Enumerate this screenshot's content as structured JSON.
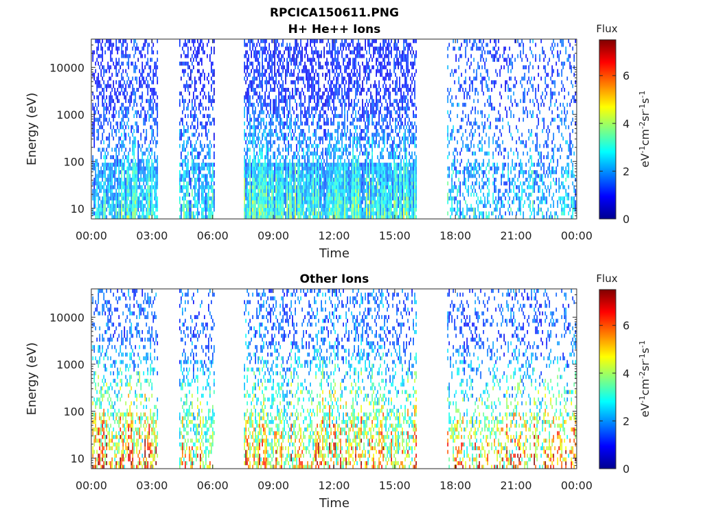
{
  "figure_title": "RPCICA150611.PNG",
  "colorbar": {
    "label": "Flux",
    "ticks": [
      "0",
      "2",
      "4",
      "6"
    ],
    "range": [
      0,
      7.5
    ],
    "colormap": "jet",
    "unit": {
      "p1": "eV",
      "s1": "-1",
      "p2": "cm",
      "s2": "-2",
      "p3": "sr",
      "s3": "-1",
      "p4": "s",
      "s4": "-1"
    }
  },
  "chart_data": [
    {
      "type": "heatmap",
      "title": "H+ He++ Ions",
      "xlabel": "Time",
      "ylabel": "Energy (eV)",
      "yscale": "log",
      "ylim": [
        6,
        40000
      ],
      "xlim_hours": [
        0,
        24
      ],
      "x_ticks": [
        "00:00",
        "03:00",
        "06:00",
        "09:00",
        "12:00",
        "15:00",
        "18:00",
        "21:00",
        "00:00"
      ],
      "y_ticks": [
        "10",
        "100",
        "1000",
        "10000"
      ],
      "data_intervals_hours": [
        [
          0.05,
          3.25
        ],
        [
          4.35,
          6.05
        ],
        [
          7.55,
          16.1
        ],
        [
          17.6,
          23.95
        ]
      ],
      "segments": [
        {
          "start": 0.05,
          "end": 3.25,
          "low_flux": 2.8,
          "high_flux": 1.2,
          "density": 0.55
        },
        {
          "start": 4.35,
          "end": 6.05,
          "low_flux": 2.6,
          "high_flux": 1.0,
          "density": 0.45
        },
        {
          "start": 7.55,
          "end": 16.1,
          "low_flux": 3.0,
          "high_flux": 1.1,
          "density": 0.65
        },
        {
          "start": 17.6,
          "end": 23.95,
          "low_flux": 2.4,
          "high_flux": 1.4,
          "density": 0.28
        }
      ]
    },
    {
      "type": "heatmap",
      "title": "Other Ions",
      "xlabel": "Time",
      "ylabel": "Energy (eV)",
      "yscale": "log",
      "ylim": [
        6,
        40000
      ],
      "xlim_hours": [
        0,
        24
      ],
      "x_ticks": [
        "00:00",
        "03:00",
        "06:00",
        "09:00",
        "12:00",
        "15:00",
        "18:00",
        "21:00",
        "00:00"
      ],
      "y_ticks": [
        "10",
        "100",
        "1000",
        "10000"
      ],
      "data_intervals_hours": [
        [
          0.05,
          3.25
        ],
        [
          4.35,
          6.05
        ],
        [
          7.55,
          16.1
        ],
        [
          17.6,
          23.95
        ]
      ],
      "segments": [
        {
          "start": 0.05,
          "end": 3.25,
          "low_flux": 5.8,
          "high_flux": 1.6,
          "density": 0.35
        },
        {
          "start": 4.35,
          "end": 6.05,
          "low_flux": 4.6,
          "high_flux": 1.5,
          "density": 0.3
        },
        {
          "start": 7.55,
          "end": 16.1,
          "low_flux": 5.2,
          "high_flux": 1.7,
          "density": 0.35
        },
        {
          "start": 17.6,
          "end": 23.95,
          "low_flux": 5.0,
          "high_flux": 1.4,
          "density": 0.25
        }
      ]
    }
  ]
}
